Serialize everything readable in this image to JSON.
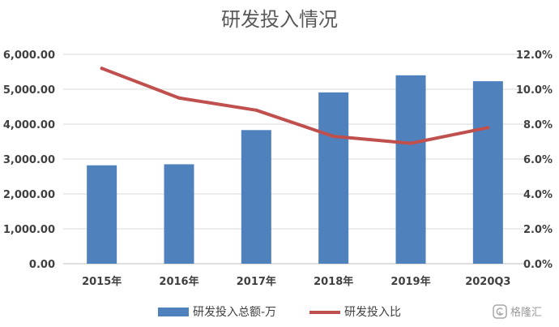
{
  "chart_data": {
    "type": "bar+line",
    "title": "研发投入情况",
    "categories": [
      "2015年",
      "2016年",
      "2017年",
      "2018年",
      "2019年",
      "2020Q3"
    ],
    "series": [
      {
        "name": "研发投入总额-万",
        "type": "bar",
        "axis": "left",
        "values": [
          2820,
          2850,
          3830,
          4910,
          5400,
          5230
        ],
        "color": "#4f81bd"
      },
      {
        "name": "研发投入比",
        "type": "line",
        "axis": "right",
        "values": [
          11.2,
          9.5,
          8.8,
          7.3,
          6.9,
          7.8
        ],
        "color": "#c0504d"
      }
    ],
    "y_left": {
      "ylim": [
        0,
        6000
      ],
      "step": 1000,
      "tick_labels": [
        "0.00",
        "1,000.00",
        "2,000.00",
        "3,000.00",
        "4,000.00",
        "5,000.00",
        "6,000.00"
      ]
    },
    "y_right": {
      "ylim": [
        0,
        12
      ],
      "step": 2,
      "tick_labels": [
        "0.0%",
        "2.0%",
        "4.0%",
        "6.0%",
        "8.0%",
        "10.0%",
        "12.0%"
      ]
    },
    "grid": true,
    "legend": "bottom-center"
  },
  "watermark": {
    "text": "格隆汇",
    "icon": "logo-icon"
  }
}
